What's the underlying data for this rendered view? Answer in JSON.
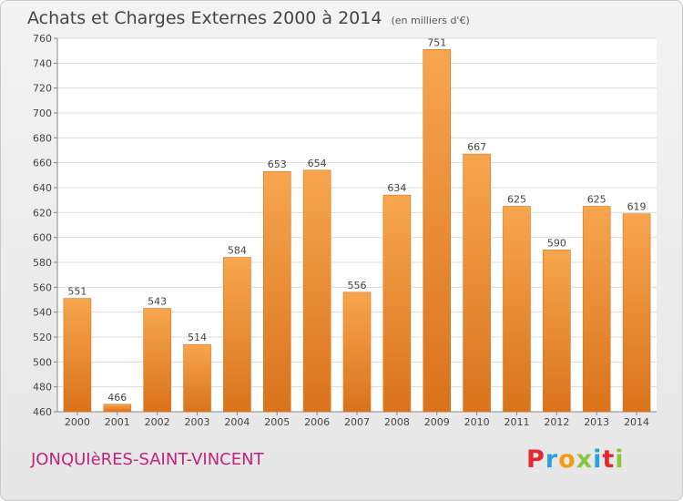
{
  "header": {
    "title": "Achats et Charges Externes 2000 à 2014",
    "subtitle": "(en milliers d'€)"
  },
  "footer": {
    "town": "JONQUIèRES-SAINT-VINCENT",
    "logo": "Proxiti",
    "logo_colors": [
      "#e8262f",
      "#29a1d9",
      "#f39c12",
      "#8bc53f",
      "#29a1d9",
      "#e8262f",
      "#8bc53f"
    ]
  },
  "chart_data": {
    "type": "bar",
    "title": "Achats et Charges Externes 2000 à 2014",
    "subtitle": "(en milliers d'€)",
    "xlabel": "",
    "ylabel": "",
    "categories": [
      "2000",
      "2001",
      "2002",
      "2003",
      "2004",
      "2005",
      "2006",
      "2007",
      "2008",
      "2009",
      "2010",
      "2011",
      "2012",
      "2013",
      "2014"
    ],
    "values": [
      551,
      466,
      543,
      514,
      584,
      653,
      654,
      556,
      634,
      751,
      667,
      625,
      590,
      625,
      619
    ],
    "ylim": [
      460,
      760
    ],
    "yticks": [
      460,
      480,
      500,
      520,
      540,
      560,
      580,
      600,
      620,
      640,
      660,
      680,
      700,
      720,
      740,
      760
    ],
    "grid": true,
    "bar_color_light": "#f7a64f",
    "bar_color_dark": "#d9731c"
  }
}
